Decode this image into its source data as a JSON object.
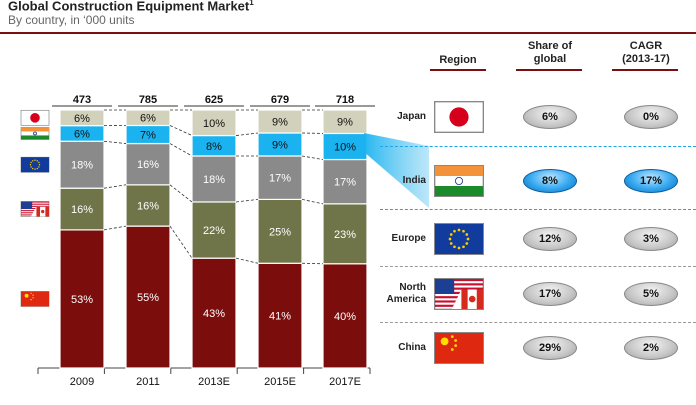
{
  "header": {
    "title": "Global Construction Equipment Market",
    "title_sup": "1",
    "subtitle": "By country, in ‘000 units"
  },
  "table": {
    "col_region": "Region",
    "col_share": "Share of global",
    "col_cagr": "CAGR (2013-17)",
    "rows": [
      {
        "region": "Japan",
        "share": "6%",
        "cagr": "0%",
        "flag": "japan-flag",
        "highlight": false
      },
      {
        "region": "India",
        "share": "8%",
        "cagr": "17%",
        "flag": "india-flag",
        "highlight": true
      },
      {
        "region": "Europe",
        "share": "12%",
        "cagr": "3%",
        "flag": "eu-flag",
        "highlight": false
      },
      {
        "region": "North America",
        "share": "17%",
        "cagr": "5%",
        "flag": "north-america-flag",
        "highlight": false
      },
      {
        "region": "China",
        "share": "29%",
        "cagr": "2%",
        "flag": "china-flag",
        "highlight": false
      }
    ]
  },
  "colors": {
    "China": "#7b0d0d",
    "North America": "#6f7449",
    "Europe": "#8a8a8a",
    "India": "#1ab3ef",
    "Japan": "#d2d1bb",
    "accent": "#7a0f0f",
    "highlight": "#35a8f0"
  },
  "chart_data": {
    "type": "bar",
    "stacked": true,
    "normalized": true,
    "categories": [
      "2009",
      "2011",
      "2013E",
      "2015E",
      "2017E"
    ],
    "totals": [
      473,
      785,
      625,
      679,
      718
    ],
    "totals_unit": "'000 units",
    "series": [
      {
        "name": "China",
        "values": [
          53,
          55,
          43,
          41,
          40
        ]
      },
      {
        "name": "North America",
        "values": [
          16,
          16,
          22,
          25,
          23
        ]
      },
      {
        "name": "Europe",
        "values": [
          18,
          16,
          18,
          17,
          17
        ]
      },
      {
        "name": "India",
        "values": [
          6,
          7,
          8,
          9,
          10
        ]
      },
      {
        "name": "Japan",
        "values": [
          6,
          6,
          10,
          9,
          9
        ]
      }
    ],
    "value_suffix": "%",
    "legend_icons": [
      "japan-flag",
      "india-flag",
      "eu-flag",
      "north-america-flag",
      "china-flag"
    ]
  }
}
